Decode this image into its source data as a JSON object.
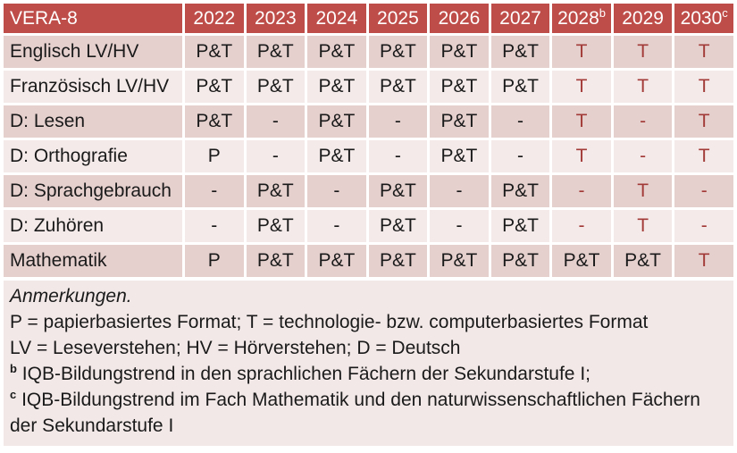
{
  "colors": {
    "header_bg": "#BE4C48",
    "band_dark": "#E5D0CE",
    "band_light": "#F4EAE9",
    "notes_bg": "#F2E8E7",
    "accent_text": "#A23B38",
    "header_text": "#FFFFFF",
    "body_text": "#1A1A1A"
  },
  "table": {
    "corner_label": "VERA-8",
    "year_headers": [
      {
        "label": "2022",
        "sup": ""
      },
      {
        "label": "2023",
        "sup": ""
      },
      {
        "label": "2024",
        "sup": ""
      },
      {
        "label": "2025",
        "sup": ""
      },
      {
        "label": "2026",
        "sup": ""
      },
      {
        "label": "2027",
        "sup": ""
      },
      {
        "label": "2028",
        "sup": "b"
      },
      {
        "label": "2029",
        "sup": ""
      },
      {
        "label": "2030",
        "sup": "c"
      }
    ],
    "rows": [
      {
        "label": "Englisch LV/HV",
        "cells": [
          {
            "v": "P&T",
            "red": false
          },
          {
            "v": "P&T",
            "red": false
          },
          {
            "v": "P&T",
            "red": false
          },
          {
            "v": "P&T",
            "red": false
          },
          {
            "v": "P&T",
            "red": false
          },
          {
            "v": "P&T",
            "red": false
          },
          {
            "v": "T",
            "red": true
          },
          {
            "v": "T",
            "red": true
          },
          {
            "v": "T",
            "red": true
          }
        ]
      },
      {
        "label": "Französisch LV/HV",
        "cells": [
          {
            "v": "P&T",
            "red": false
          },
          {
            "v": "P&T",
            "red": false
          },
          {
            "v": "P&T",
            "red": false
          },
          {
            "v": "P&T",
            "red": false
          },
          {
            "v": "P&T",
            "red": false
          },
          {
            "v": "P&T",
            "red": false
          },
          {
            "v": "T",
            "red": true
          },
          {
            "v": "T",
            "red": true
          },
          {
            "v": "T",
            "red": true
          }
        ]
      },
      {
        "label": "D: Lesen",
        "cells": [
          {
            "v": "P&T",
            "red": false
          },
          {
            "v": "-",
            "red": false
          },
          {
            "v": "P&T",
            "red": false
          },
          {
            "v": "-",
            "red": false
          },
          {
            "v": "P&T",
            "red": false
          },
          {
            "v": "-",
            "red": false
          },
          {
            "v": "T",
            "red": true
          },
          {
            "v": "-",
            "red": true
          },
          {
            "v": "T",
            "red": true
          }
        ]
      },
      {
        "label": "D: Orthografie",
        "cells": [
          {
            "v": "P",
            "red": false
          },
          {
            "v": "-",
            "red": false
          },
          {
            "v": "P&T",
            "red": false
          },
          {
            "v": "-",
            "red": false
          },
          {
            "v": "P&T",
            "red": false
          },
          {
            "v": "-",
            "red": false
          },
          {
            "v": "T",
            "red": true
          },
          {
            "v": "-",
            "red": true
          },
          {
            "v": "T",
            "red": true
          }
        ]
      },
      {
        "label": "D: Sprachgebrauch",
        "cells": [
          {
            "v": "-",
            "red": false
          },
          {
            "v": "P&T",
            "red": false
          },
          {
            "v": "-",
            "red": false
          },
          {
            "v": "P&T",
            "red": false
          },
          {
            "v": "-",
            "red": false
          },
          {
            "v": "P&T",
            "red": false
          },
          {
            "v": "-",
            "red": true
          },
          {
            "v": "T",
            "red": true
          },
          {
            "v": "-",
            "red": true
          }
        ]
      },
      {
        "label": "D: Zuhören",
        "cells": [
          {
            "v": "-",
            "red": false
          },
          {
            "v": "P&T",
            "red": false
          },
          {
            "v": "-",
            "red": false
          },
          {
            "v": "P&T",
            "red": false
          },
          {
            "v": "-",
            "red": false
          },
          {
            "v": "P&T",
            "red": false
          },
          {
            "v": "-",
            "red": true
          },
          {
            "v": "T",
            "red": true
          },
          {
            "v": "-",
            "red": true
          }
        ]
      },
      {
        "label": "Mathematik",
        "cells": [
          {
            "v": "P",
            "red": false
          },
          {
            "v": "P&T",
            "red": false
          },
          {
            "v": "P&T",
            "red": false
          },
          {
            "v": "P&T",
            "red": false
          },
          {
            "v": "P&T",
            "red": false
          },
          {
            "v": "P&T",
            "red": false
          },
          {
            "v": "P&T",
            "red": false
          },
          {
            "v": "P&T",
            "red": false
          },
          {
            "v": "T",
            "red": true
          }
        ]
      }
    ]
  },
  "notes": {
    "lines": [
      {
        "text": "Anmerkungen.",
        "italic": true,
        "sup": ""
      },
      {
        "text": "P = papierbasiertes Format; T = technologie- bzw. computerbasiertes Format",
        "italic": false,
        "sup": ""
      },
      {
        "text": "LV = Leseverstehen; HV = Hörverstehen; D = Deutsch",
        "italic": false,
        "sup": ""
      },
      {
        "text": "IQB-Bildungstrend in den sprachlichen Fächern der Sekundarstufe I;",
        "italic": false,
        "sup": "b"
      },
      {
        "text": "IQB-Bildungstrend im Fach Mathematik und den naturwissenschaftlichen Fächern der Sekundarstufe I",
        "italic": false,
        "sup": "c"
      }
    ]
  }
}
